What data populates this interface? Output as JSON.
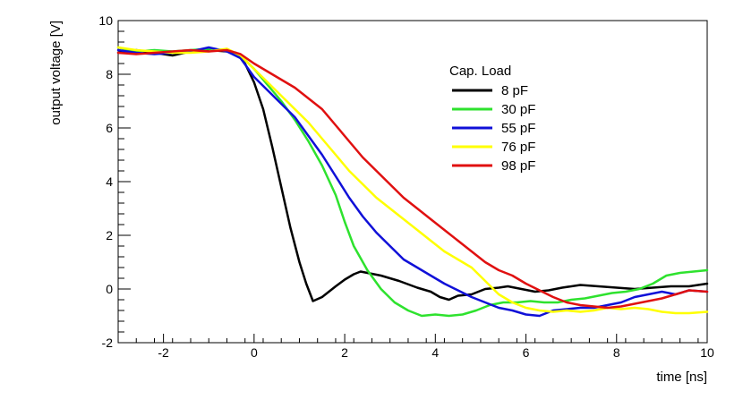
{
  "chart_data": {
    "type": "line",
    "title": "",
    "xlabel": "time [ns]",
    "ylabel": "output voltage [V]",
    "xlim": [
      -3,
      10
    ],
    "ylim": [
      -2,
      10
    ],
    "xticks": [
      -2,
      0,
      2,
      4,
      6,
      8,
      10
    ],
    "xtick_labels": [
      "-2",
      "0",
      "2",
      "4",
      "6",
      "8",
      "10"
    ],
    "yticks": [
      -2,
      0,
      2,
      4,
      6,
      8,
      10
    ],
    "ytick_labels": [
      "-2",
      "0",
      "2",
      "4",
      "6",
      "8",
      "10"
    ],
    "grid": false,
    "legend": {
      "title": "Cap. Load",
      "placement": "top-right"
    },
    "series": [
      {
        "name": "8 pF",
        "color": "#000000",
        "points": [
          [
            -3,
            8.8
          ],
          [
            -2.6,
            8.9
          ],
          [
            -2.2,
            8.8
          ],
          [
            -1.8,
            8.7
          ],
          [
            -1.4,
            8.85
          ],
          [
            -1.0,
            8.9
          ],
          [
            -0.6,
            8.85
          ],
          [
            -0.4,
            8.8
          ],
          [
            -0.2,
            8.4
          ],
          [
            0.0,
            7.7
          ],
          [
            0.2,
            6.7
          ],
          [
            0.4,
            5.3
          ],
          [
            0.6,
            3.8
          ],
          [
            0.8,
            2.3
          ],
          [
            1.0,
            1.0
          ],
          [
            1.15,
            0.2
          ],
          [
            1.3,
            -0.45
          ],
          [
            1.5,
            -0.3
          ],
          [
            1.8,
            0.1
          ],
          [
            2.0,
            0.35
          ],
          [
            2.2,
            0.55
          ],
          [
            2.35,
            0.65
          ],
          [
            2.5,
            0.6
          ],
          [
            2.8,
            0.5
          ],
          [
            3.2,
            0.3
          ],
          [
            3.6,
            0.05
          ],
          [
            3.9,
            -0.1
          ],
          [
            4.1,
            -0.3
          ],
          [
            4.3,
            -0.4
          ],
          [
            4.5,
            -0.25
          ],
          [
            4.8,
            -0.2
          ],
          [
            5.1,
            0.0
          ],
          [
            5.4,
            0.05
          ],
          [
            5.6,
            0.1
          ],
          [
            5.9,
            0.0
          ],
          [
            6.2,
            -0.1
          ],
          [
            6.5,
            -0.05
          ],
          [
            6.8,
            0.05
          ],
          [
            7.2,
            0.15
          ],
          [
            7.6,
            0.1
          ],
          [
            8.0,
            0.05
          ],
          [
            8.4,
            0.0
          ],
          [
            8.8,
            0.05
          ],
          [
            9.2,
            0.1
          ],
          [
            9.6,
            0.1
          ],
          [
            10.0,
            0.2
          ]
        ]
      },
      {
        "name": "30 pF",
        "color": "#2ee22e",
        "points": [
          [
            -3,
            9.0
          ],
          [
            -2.6,
            8.85
          ],
          [
            -2.2,
            8.9
          ],
          [
            -1.8,
            8.85
          ],
          [
            -1.4,
            8.9
          ],
          [
            -1.0,
            8.95
          ],
          [
            -0.6,
            8.9
          ],
          [
            -0.3,
            8.7
          ],
          [
            0.0,
            8.2
          ],
          [
            0.3,
            7.6
          ],
          [
            0.6,
            7.0
          ],
          [
            0.9,
            6.3
          ],
          [
            1.2,
            5.5
          ],
          [
            1.5,
            4.6
          ],
          [
            1.8,
            3.5
          ],
          [
            2.0,
            2.5
          ],
          [
            2.2,
            1.6
          ],
          [
            2.5,
            0.7
          ],
          [
            2.8,
            0.0
          ],
          [
            3.1,
            -0.5
          ],
          [
            3.4,
            -0.8
          ],
          [
            3.7,
            -1.0
          ],
          [
            4.0,
            -0.95
          ],
          [
            4.3,
            -1.0
          ],
          [
            4.6,
            -0.95
          ],
          [
            4.9,
            -0.8
          ],
          [
            5.2,
            -0.6
          ],
          [
            5.5,
            -0.5
          ],
          [
            5.8,
            -0.5
          ],
          [
            6.1,
            -0.45
          ],
          [
            6.4,
            -0.5
          ],
          [
            6.7,
            -0.5
          ],
          [
            7.0,
            -0.4
          ],
          [
            7.3,
            -0.35
          ],
          [
            7.6,
            -0.25
          ],
          [
            7.9,
            -0.15
          ],
          [
            8.2,
            -0.1
          ],
          [
            8.5,
            0.0
          ],
          [
            8.8,
            0.2
          ],
          [
            9.1,
            0.5
          ],
          [
            9.4,
            0.6
          ],
          [
            9.7,
            0.65
          ],
          [
            10.0,
            0.7
          ]
        ]
      },
      {
        "name": "55 pF",
        "color": "#1010d8",
        "points": [
          [
            -3,
            8.9
          ],
          [
            -2.6,
            8.8
          ],
          [
            -2.2,
            8.75
          ],
          [
            -1.8,
            8.8
          ],
          [
            -1.4,
            8.85
          ],
          [
            -1.0,
            9.0
          ],
          [
            -0.6,
            8.85
          ],
          [
            -0.3,
            8.6
          ],
          [
            0.0,
            7.9
          ],
          [
            0.3,
            7.4
          ],
          [
            0.6,
            6.9
          ],
          [
            0.9,
            6.4
          ],
          [
            1.2,
            5.7
          ],
          [
            1.5,
            5.0
          ],
          [
            1.8,
            4.2
          ],
          [
            2.1,
            3.4
          ],
          [
            2.4,
            2.7
          ],
          [
            2.7,
            2.1
          ],
          [
            3.0,
            1.6
          ],
          [
            3.3,
            1.1
          ],
          [
            3.6,
            0.8
          ],
          [
            3.9,
            0.5
          ],
          [
            4.2,
            0.2
          ],
          [
            4.5,
            -0.05
          ],
          [
            4.8,
            -0.3
          ],
          [
            5.1,
            -0.5
          ],
          [
            5.4,
            -0.7
          ],
          [
            5.7,
            -0.8
          ],
          [
            6.0,
            -0.95
          ],
          [
            6.3,
            -1.0
          ],
          [
            6.6,
            -0.8
          ],
          [
            6.9,
            -0.75
          ],
          [
            7.2,
            -0.7
          ],
          [
            7.5,
            -0.7
          ],
          [
            7.8,
            -0.6
          ],
          [
            8.1,
            -0.5
          ],
          [
            8.4,
            -0.3
          ],
          [
            8.7,
            -0.2
          ],
          [
            9.0,
            -0.1
          ],
          [
            9.3,
            -0.2
          ],
          [
            9.6,
            -0.05
          ],
          [
            10.0,
            -0.1
          ]
        ]
      },
      {
        "name": "76 pF",
        "color": "#ffff00",
        "points": [
          [
            -3,
            9.0
          ],
          [
            -2.6,
            8.9
          ],
          [
            -2.2,
            8.85
          ],
          [
            -1.8,
            8.8
          ],
          [
            -1.4,
            8.8
          ],
          [
            -1.0,
            8.85
          ],
          [
            -0.6,
            8.95
          ],
          [
            -0.3,
            8.7
          ],
          [
            0.0,
            8.2
          ],
          [
            0.3,
            7.7
          ],
          [
            0.6,
            7.2
          ],
          [
            0.9,
            6.7
          ],
          [
            1.2,
            6.2
          ],
          [
            1.5,
            5.6
          ],
          [
            1.8,
            5.0
          ],
          [
            2.1,
            4.4
          ],
          [
            2.4,
            3.9
          ],
          [
            2.7,
            3.4
          ],
          [
            3.0,
            3.0
          ],
          [
            3.3,
            2.6
          ],
          [
            3.6,
            2.2
          ],
          [
            3.9,
            1.8
          ],
          [
            4.2,
            1.4
          ],
          [
            4.5,
            1.1
          ],
          [
            4.8,
            0.8
          ],
          [
            5.1,
            0.3
          ],
          [
            5.4,
            -0.2
          ],
          [
            5.7,
            -0.5
          ],
          [
            6.0,
            -0.7
          ],
          [
            6.3,
            -0.8
          ],
          [
            6.6,
            -0.85
          ],
          [
            6.9,
            -0.8
          ],
          [
            7.2,
            -0.85
          ],
          [
            7.5,
            -0.8
          ],
          [
            7.8,
            -0.7
          ],
          [
            8.1,
            -0.75
          ],
          [
            8.4,
            -0.7
          ],
          [
            8.7,
            -0.75
          ],
          [
            9.0,
            -0.85
          ],
          [
            9.3,
            -0.9
          ],
          [
            9.6,
            -0.9
          ],
          [
            10.0,
            -0.85
          ]
        ]
      },
      {
        "name": "98 pF",
        "color": "#e01010",
        "points": [
          [
            -3,
            8.8
          ],
          [
            -2.6,
            8.75
          ],
          [
            -2.2,
            8.8
          ],
          [
            -1.8,
            8.85
          ],
          [
            -1.4,
            8.9
          ],
          [
            -1.0,
            8.85
          ],
          [
            -0.6,
            8.9
          ],
          [
            -0.3,
            8.75
          ],
          [
            0.0,
            8.4
          ],
          [
            0.3,
            8.1
          ],
          [
            0.6,
            7.8
          ],
          [
            0.9,
            7.5
          ],
          [
            1.2,
            7.1
          ],
          [
            1.5,
            6.7
          ],
          [
            1.8,
            6.1
          ],
          [
            2.1,
            5.5
          ],
          [
            2.4,
            4.9
          ],
          [
            2.7,
            4.4
          ],
          [
            3.0,
            3.9
          ],
          [
            3.3,
            3.4
          ],
          [
            3.6,
            3.0
          ],
          [
            3.9,
            2.6
          ],
          [
            4.2,
            2.2
          ],
          [
            4.5,
            1.8
          ],
          [
            4.8,
            1.4
          ],
          [
            5.1,
            1.0
          ],
          [
            5.4,
            0.7
          ],
          [
            5.7,
            0.5
          ],
          [
            6.0,
            0.2
          ],
          [
            6.3,
            -0.05
          ],
          [
            6.6,
            -0.3
          ],
          [
            6.9,
            -0.5
          ],
          [
            7.2,
            -0.6
          ],
          [
            7.5,
            -0.65
          ],
          [
            7.8,
            -0.7
          ],
          [
            8.1,
            -0.65
          ],
          [
            8.4,
            -0.55
          ],
          [
            8.7,
            -0.45
          ],
          [
            9.0,
            -0.35
          ],
          [
            9.3,
            -0.2
          ],
          [
            9.6,
            -0.05
          ],
          [
            10.0,
            -0.1
          ]
        ]
      }
    ]
  }
}
